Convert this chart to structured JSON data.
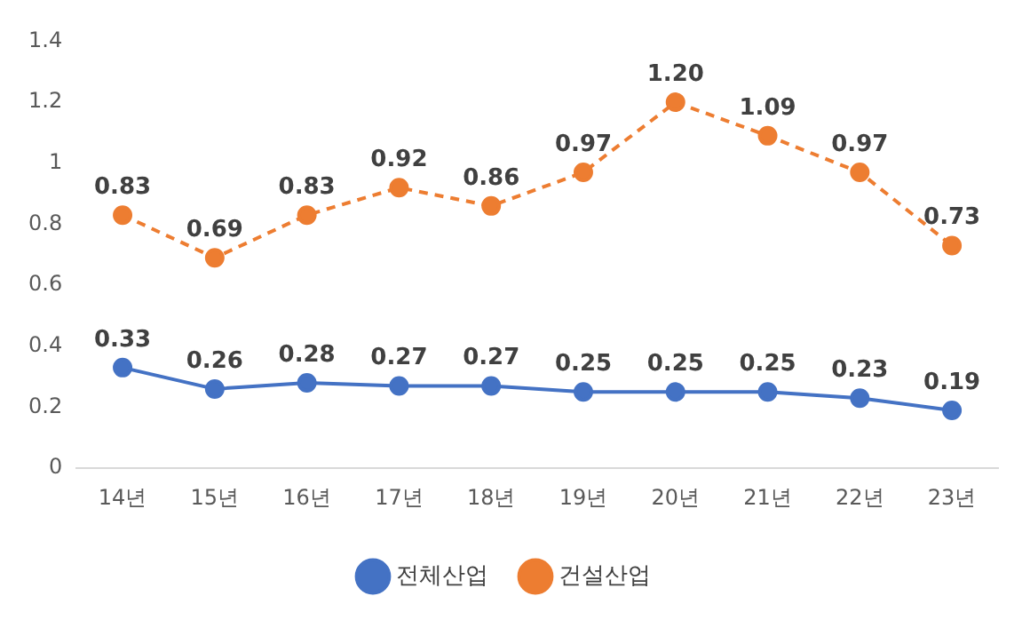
{
  "chart_data": {
    "type": "line",
    "categories": [
      "14년",
      "15년",
      "16년",
      "17년",
      "18년",
      "19년",
      "20년",
      "21년",
      "22년",
      "23년"
    ],
    "series": [
      {
        "name": "전체산업",
        "color": "#4472c4",
        "marker": "circle",
        "line_style": "solid",
        "values": [
          0.33,
          0.26,
          0.28,
          0.27,
          0.27,
          0.25,
          0.25,
          0.25,
          0.23,
          0.19
        ],
        "value_labels": [
          "0.33",
          "0.26",
          "0.28",
          "0.27",
          "0.27",
          "0.25",
          "0.25",
          "0.25",
          "0.23",
          "0.19"
        ]
      },
      {
        "name": "건설산업",
        "color": "#ed7d31",
        "marker": "circle",
        "line_style": "dashed",
        "values": [
          0.83,
          0.69,
          0.83,
          0.92,
          0.86,
          0.97,
          1.2,
          1.09,
          0.97,
          0.73
        ],
        "value_labels": [
          "0.83",
          "0.69",
          "0.83",
          "0.92",
          "0.86",
          "0.97",
          "1.20",
          "1.09",
          "0.97",
          "0.73"
        ]
      }
    ],
    "ylim": [
      0,
      1.4
    ],
    "yticks": [
      0,
      0.2,
      0.4,
      0.6,
      0.8,
      1,
      1.2,
      1.4
    ],
    "grid": false,
    "legend": "bottom"
  }
}
